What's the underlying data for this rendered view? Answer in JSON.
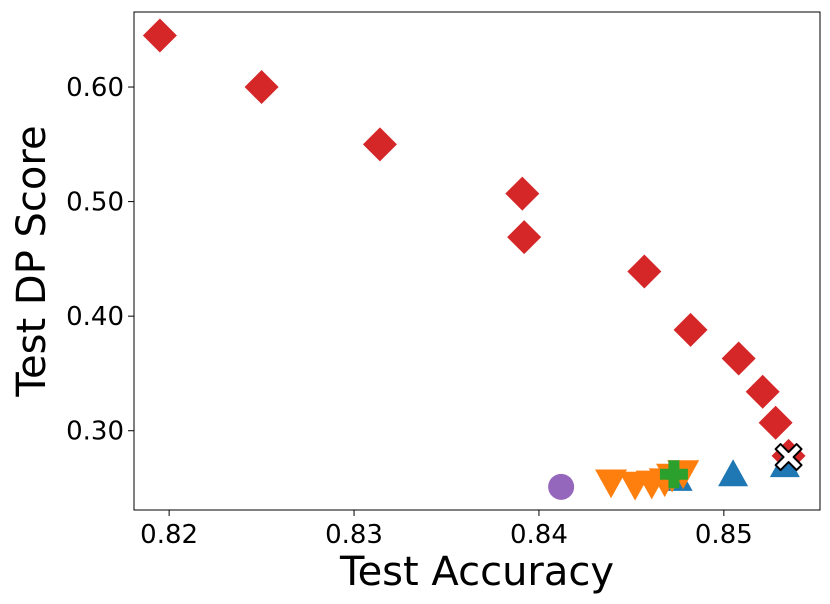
{
  "chart_data": {
    "type": "scatter",
    "title": "",
    "xlabel": "Test Accuracy",
    "ylabel": "Test DP Score",
    "xlim": [
      0.8181,
      0.8552
    ],
    "ylim": [
      0.2308,
      0.6655
    ],
    "xticks": [
      0.82,
      0.83,
      0.84,
      0.85
    ],
    "xtick_labels": [
      "0.82",
      "0.83",
      "0.84",
      "0.85"
    ],
    "yticks": [
      0.3,
      0.4,
      0.5,
      0.6
    ],
    "ytick_labels": [
      "0.30",
      "0.40",
      "0.50",
      "0.60"
    ],
    "grid": false,
    "legend": "none",
    "series": [
      {
        "marker": "diamond",
        "color": "#d62728",
        "points": [
          [
            0.8195,
            0.645
          ],
          [
            0.825,
            0.6
          ],
          [
            0.8314,
            0.55
          ],
          [
            0.8391,
            0.507
          ],
          [
            0.8392,
            0.469
          ],
          [
            0.8457,
            0.439
          ],
          [
            0.8482,
            0.388
          ],
          [
            0.8508,
            0.363
          ],
          [
            0.8521,
            0.334
          ],
          [
            0.8528,
            0.307
          ],
          [
            0.8535,
            0.278
          ]
        ]
      },
      {
        "marker": "triangle-up",
        "color": "#1f77b4",
        "points": [
          [
            0.8475,
            0.258
          ],
          [
            0.8505,
            0.262
          ],
          [
            0.8533,
            0.27
          ]
        ]
      },
      {
        "marker": "triangle-down",
        "color": "#ff7f0e",
        "points": [
          [
            0.8439,
            0.255
          ],
          [
            0.8452,
            0.253
          ],
          [
            0.8461,
            0.254
          ],
          [
            0.8468,
            0.256
          ],
          [
            0.8472,
            0.26
          ],
          [
            0.8478,
            0.263
          ]
        ]
      },
      {
        "marker": "plus",
        "color": "#2ca02c",
        "points": [
          [
            0.8473,
            0.262
          ]
        ]
      },
      {
        "marker": "circle",
        "color": "#9467bd",
        "points": [
          [
            0.8412,
            0.251
          ]
        ]
      },
      {
        "marker": "x",
        "color": "#ffffff",
        "points": [
          [
            0.8535,
            0.277
          ]
        ]
      }
    ]
  }
}
